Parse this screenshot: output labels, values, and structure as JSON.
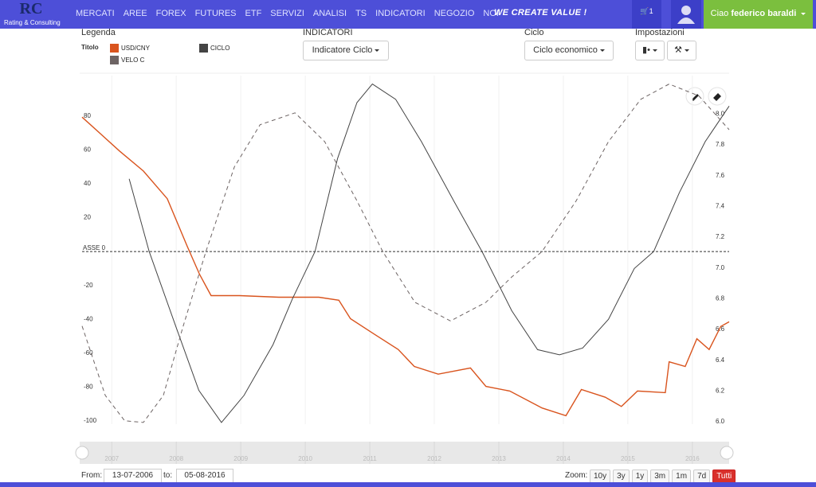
{
  "nav": {
    "logo": "Rating & Consulting",
    "menu": [
      "MERCATI",
      "AREE",
      "FOREX",
      "FUTURES",
      "ETF",
      "SERVIZI",
      "ANALISI",
      "TS",
      "INDICATORI",
      "NEGOZIO",
      "NOI"
    ],
    "slogan": "WE CREATE VALUE !",
    "cart": "1",
    "greeting": "Ciao",
    "user_name": "federico baraldi"
  },
  "toolbar": {
    "legend_title": "Legenda",
    "legend_label": "Titolo",
    "indicators_title": "INDICATORI",
    "indicator": "Indicatore Ciclo",
    "cycle_title": "Ciclo",
    "cycle": "Ciclo economico",
    "settings_title": "Impostazioni"
  },
  "chart_data": {
    "type": "line",
    "xlim": [
      2006.54,
      2016.57
    ],
    "xticks": [
      2007,
      2008,
      2009,
      2010,
      2011,
      2012,
      2013,
      2014,
      2015,
      2016
    ],
    "ylim": [
      -102,
      104
    ],
    "yticks": [
      80,
      60,
      40,
      20,
      -20,
      -40,
      -60,
      -80,
      -100
    ],
    "y2lim": [
      5.985,
      8.25
    ],
    "y2ticks": [
      {
        "value": 6,
        "label": "6.0"
      },
      6.2,
      6.4,
      6.6,
      6.8,
      {
        "value": 7,
        "label": "7.0"
      },
      7.2,
      7.4,
      7.6,
      7.8,
      {
        "value": 8,
        "label": "8.0"
      }
    ],
    "annotation": {
      "label": "ASSE 0",
      "value": 0
    },
    "grid": true,
    "series": [
      {
        "name": "USD/CNY",
        "color": "#d9541e",
        "axis": "y2",
        "x": [
          2006.54,
          2007.12,
          2007.49,
          2007.86,
          2008.17,
          2008.36,
          2008.54,
          2008.98,
          2009.59,
          2010.21,
          2010.52,
          2010.7,
          2011.07,
          2011.44,
          2011.69,
          2012.06,
          2012.56,
          2012.8,
          2013.17,
          2013.67,
          2014.04,
          2014.28,
          2014.65,
          2014.9,
          2015.15,
          2015.58,
          2015.64,
          2015.89,
          2016.07,
          2016.26,
          2016.44,
          2016.57
        ],
        "values": [
          7.98,
          7.76,
          7.63,
          7.45,
          7.14,
          6.96,
          6.82,
          6.82,
          6.81,
          6.81,
          6.79,
          6.67,
          6.57,
          6.47,
          6.36,
          6.31,
          6.35,
          6.23,
          6.2,
          6.09,
          6.04,
          6.21,
          6.16,
          6.1,
          6.2,
          6.19,
          6.39,
          6.36,
          6.54,
          6.47,
          6.62,
          6.65
        ]
      },
      {
        "name": "CICLO",
        "color": "#444444",
        "x": [
          2007.27,
          2007.58,
          2008.0,
          2008.35,
          2008.7,
          2009.05,
          2009.5,
          2009.8,
          2010.15,
          2010.5,
          2010.8,
          2011.04,
          2011.4,
          2011.8,
          2012.3,
          2012.74,
          2013.2,
          2013.6,
          2013.94,
          2014.3,
          2014.7,
          2015.1,
          2015.4,
          2015.8,
          2016.2,
          2016.57
        ],
        "values": [
          43,
          0,
          -45,
          -82,
          -101,
          -85,
          -55,
          -28,
          0,
          55,
          88,
          99,
          90,
          65,
          30,
          0,
          -35,
          -58,
          -61,
          -57,
          -40,
          -10,
          0,
          35,
          65,
          86
        ]
      },
      {
        "name": "VELO C",
        "color": "#6d6464",
        "dash": true,
        "x": [
          2006.54,
          2006.9,
          2007.2,
          2007.49,
          2007.8,
          2008.1,
          2008.46,
          2008.9,
          2009.3,
          2009.84,
          2010.3,
          2010.8,
          2011.2,
          2011.7,
          2012.25,
          2012.8,
          2013.2,
          2013.67,
          2014.2,
          2014.7,
          2015.2,
          2015.64,
          2016.1,
          2016.57
        ],
        "values": [
          -44,
          -85,
          -100,
          -101,
          -85,
          -45,
          0,
          50,
          75,
          82,
          65,
          30,
          0,
          -30,
          -41,
          -30,
          -15,
          0,
          30,
          65,
          90,
          99,
          92,
          72
        ]
      }
    ]
  },
  "footer": {
    "from_label": "From:",
    "from": "13-07-2006",
    "to_label": "to:",
    "to": "05-08-2016",
    "zoom_label": "Zoom:",
    "zoom_buttons": [
      "10y",
      "3y",
      "1y",
      "3m",
      "1m",
      "7d",
      "Tutti"
    ]
  }
}
